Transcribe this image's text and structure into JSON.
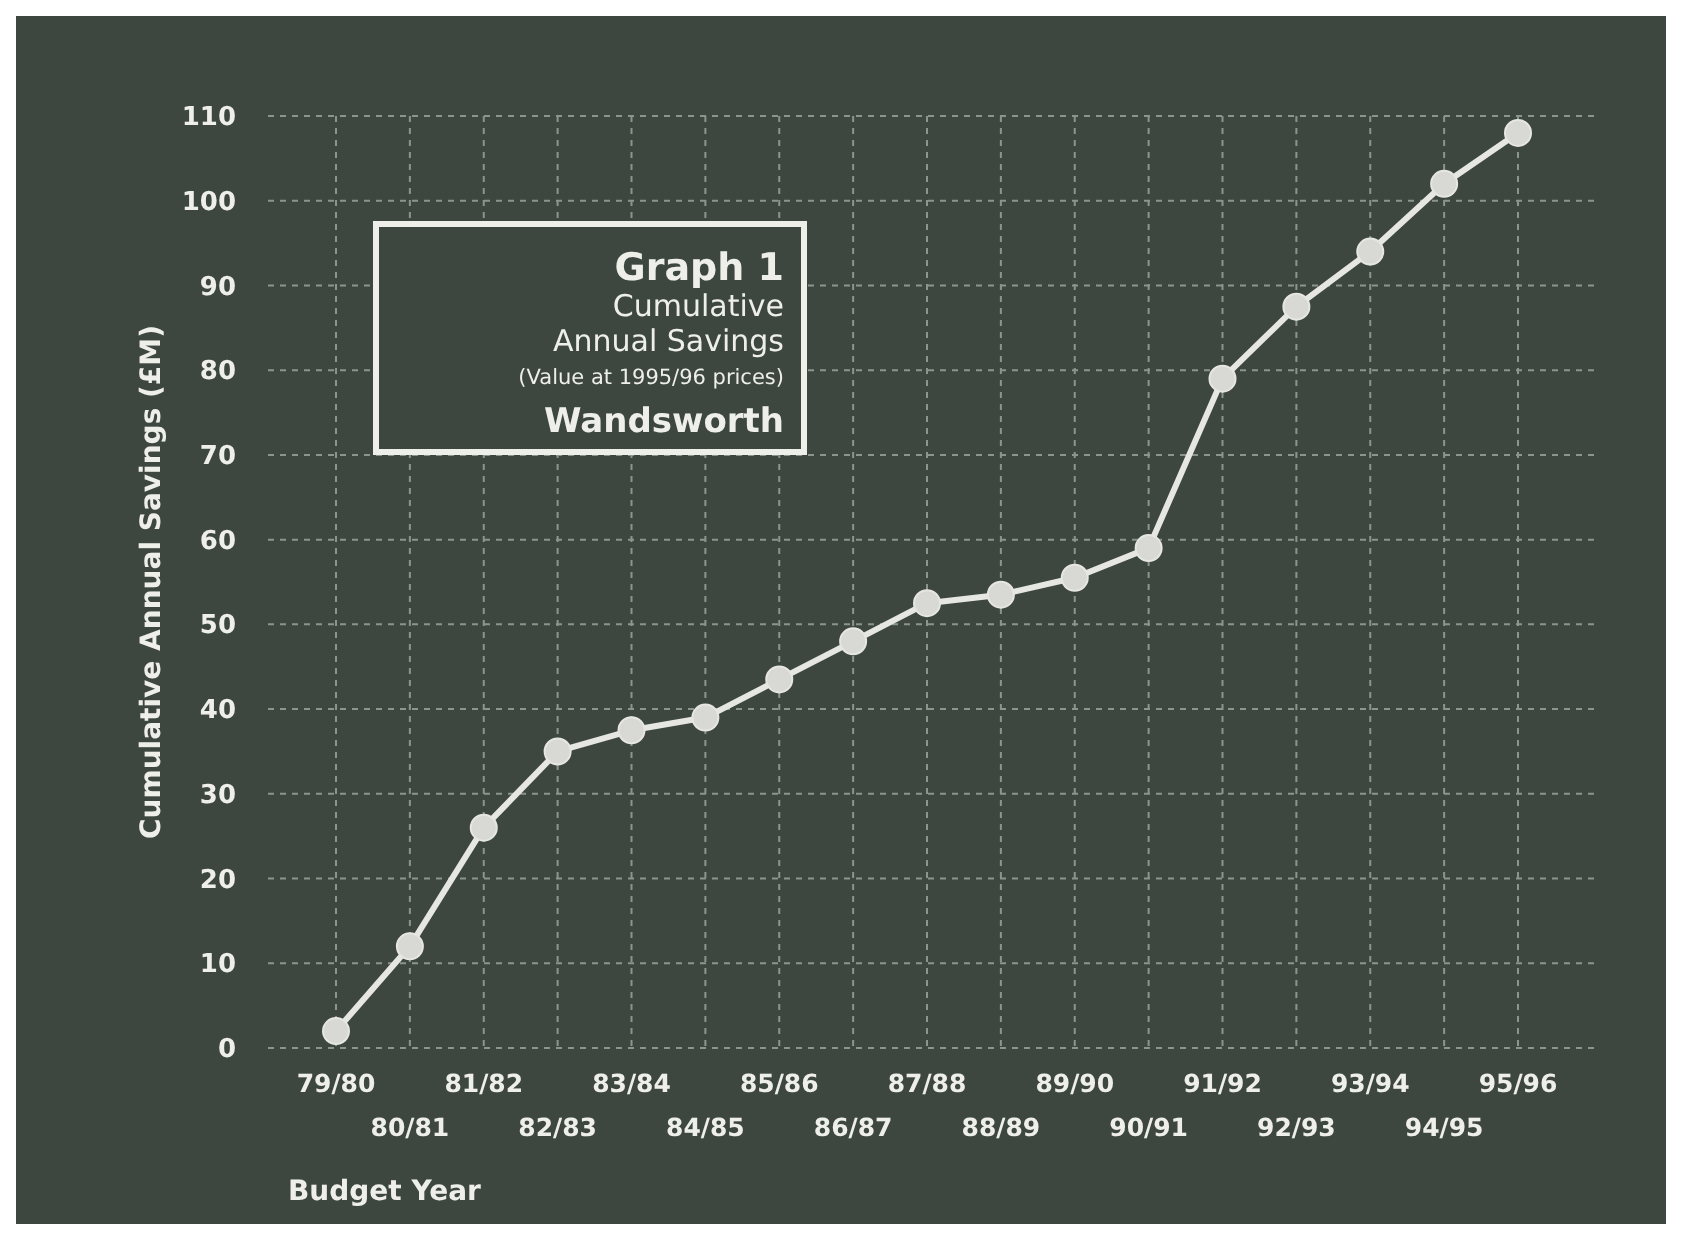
{
  "chart_data": {
    "type": "line",
    "title": "Graph 1",
    "subtitle": "Cumulative Annual Savings",
    "annotations": [
      "(Value at 1995/96 prices)",
      "Wandsworth"
    ],
    "xlabel": "Budget Year",
    "ylabel": "Cumulative Annual Savings (£M)",
    "categories": [
      "79/80",
      "80/81",
      "81/82",
      "82/83",
      "83/84",
      "84/85",
      "85/86",
      "86/87",
      "87/88",
      "88/89",
      "89/90",
      "90/91",
      "91/92",
      "92/93",
      "93/94",
      "94/95",
      "95/96"
    ],
    "series": [
      {
        "color": "#e6e6e2",
        "values": [
          2,
          12,
          26,
          35,
          37.5,
          39,
          43.5,
          48,
          52.5,
          53.5,
          55.5,
          59,
          79,
          87.5,
          94,
          102,
          108
        ]
      }
    ],
    "ylim": [
      0,
      110
    ],
    "yticks": [
      0,
      10,
      20,
      30,
      40,
      50,
      60,
      70,
      80,
      90,
      100,
      110
    ],
    "grid": true,
    "marker": "circle",
    "line_style": "solid"
  }
}
